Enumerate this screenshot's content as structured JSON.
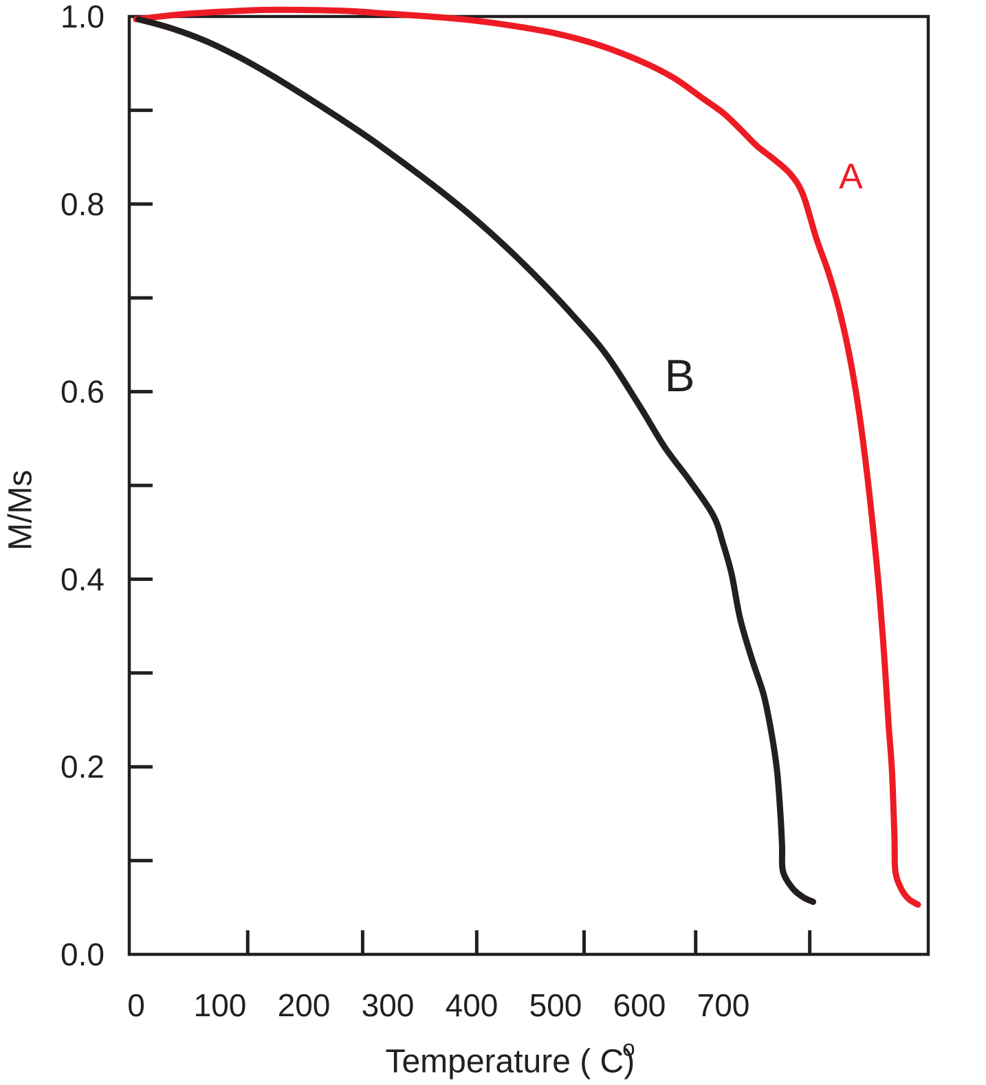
{
  "figure": {
    "background": "#ffffff",
    "text_color": "#231F20"
  },
  "chart_data": {
    "type": "line",
    "title": "",
    "xlabel": "Temperature ( C)",
    "xlabel_superscript": "o",
    "ylabel": "M/Ms",
    "grid": "off",
    "legend": "inline-curve-labels",
    "axis_color": "#231F20",
    "x_range_deg_c": [
      0,
      944
    ],
    "y_range": [
      0,
      1.0
    ],
    "x_tick_labels": [
      {
        "label": "0",
        "t": 0
      },
      {
        "label": "100",
        "t": 100
      },
      {
        "label": "200",
        "t": 200
      },
      {
        "label": "300",
        "t": 300
      },
      {
        "label": "400",
        "t": 400
      },
      {
        "label": "500",
        "t": 500
      },
      {
        "label": "600",
        "t": 600
      },
      {
        "label": "700",
        "t": 700
      }
    ],
    "x_tick_marks_t": [
      133,
      270,
      406,
      534,
      667,
      803
    ],
    "y_tick_labels": [
      {
        "label": "1.0",
        "v": 1.0
      },
      {
        "label": "0.8",
        "v": 0.8
      },
      {
        "label": "0.6",
        "v": 0.6
      },
      {
        "label": "0.4",
        "v": 0.4
      },
      {
        "label": "0.2",
        "v": 0.2
      },
      {
        "label": "0.0",
        "v": 0.0
      }
    ],
    "y_tick_marks_v": [
      0.1,
      0.2,
      0.3,
      0.4,
      0.5,
      0.6,
      0.7,
      0.8,
      0.9
    ],
    "series": [
      {
        "name": "A",
        "color": "#ED1C24",
        "label_anchor": {
          "t": 852,
          "v": 0.829
        },
        "points": [
          [
            0,
            0.997
          ],
          [
            50,
            1.002
          ],
          [
            100,
            1.005
          ],
          [
            150,
            1.007
          ],
          [
            200,
            1.007
          ],
          [
            250,
            1.006
          ],
          [
            300,
            1.003
          ],
          [
            350,
            1.0
          ],
          [
            400,
            0.996
          ],
          [
            450,
            0.99
          ],
          [
            500,
            0.982
          ],
          [
            550,
            0.97
          ],
          [
            600,
            0.953
          ],
          [
            640,
            0.935
          ],
          [
            675,
            0.913
          ],
          [
            700,
            0.897
          ],
          [
            720,
            0.88
          ],
          [
            740,
            0.862
          ],
          [
            760,
            0.848
          ],
          [
            780,
            0.832
          ],
          [
            795,
            0.81
          ],
          [
            811,
            0.763
          ],
          [
            825,
            0.728
          ],
          [
            838,
            0.688
          ],
          [
            850,
            0.64
          ],
          [
            861,
            0.583
          ],
          [
            871,
            0.515
          ],
          [
            879,
            0.45
          ],
          [
            886,
            0.385
          ],
          [
            892,
            0.315
          ],
          [
            897,
            0.245
          ],
          [
            901,
            0.196
          ],
          [
            904,
            0.125
          ],
          [
            905,
            0.089
          ],
          [
            912,
            0.07
          ],
          [
            921,
            0.059
          ],
          [
            932,
            0.053
          ]
        ]
      },
      {
        "name": "B",
        "color": "#231F20",
        "label_anchor": {
          "t": 648,
          "v": 0.617
        },
        "points": [
          [
            3,
            0.997
          ],
          [
            40,
            0.988
          ],
          [
            80,
            0.975
          ],
          [
            120,
            0.958
          ],
          [
            160,
            0.938
          ],
          [
            200,
            0.916
          ],
          [
            240,
            0.893
          ],
          [
            280,
            0.869
          ],
          [
            320,
            0.843
          ],
          [
            360,
            0.816
          ],
          [
            400,
            0.787
          ],
          [
            440,
            0.755
          ],
          [
            480,
            0.72
          ],
          [
            520,
            0.682
          ],
          [
            560,
            0.64
          ],
          [
            600,
            0.585
          ],
          [
            630,
            0.541
          ],
          [
            660,
            0.505
          ],
          [
            688,
            0.468
          ],
          [
            700,
            0.437
          ],
          [
            710,
            0.405
          ],
          [
            720,
            0.358
          ],
          [
            734,
            0.315
          ],
          [
            748,
            0.277
          ],
          [
            757,
            0.238
          ],
          [
            764,
            0.196
          ],
          [
            768,
            0.15
          ],
          [
            770,
            0.116
          ],
          [
            771,
            0.089
          ],
          [
            782,
            0.071
          ],
          [
            795,
            0.061
          ],
          [
            807,
            0.056
          ]
        ]
      }
    ]
  }
}
